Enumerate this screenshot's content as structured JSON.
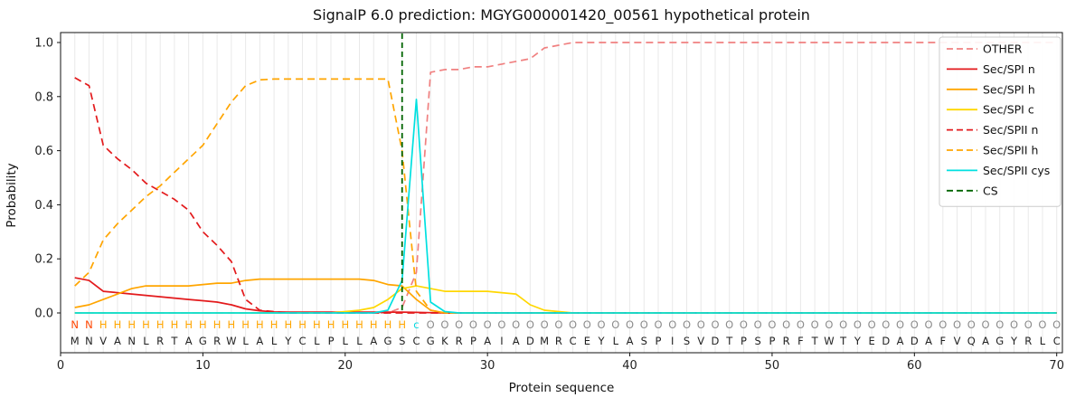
{
  "chart_data": {
    "type": "line",
    "title": "SignalP 6.0 prediction: MGYG000001420_00561 hypothetical protein",
    "xlabel": "Protein sequence",
    "ylabel": "Probability",
    "xlim": [
      0,
      70.4
    ],
    "ylim": [
      0.0,
      1.05
    ],
    "xticks": [
      0,
      10,
      20,
      30,
      40,
      50,
      60,
      70
    ],
    "yticks": [
      0.0,
      0.2,
      0.4,
      0.6,
      0.8,
      1.0
    ],
    "grid": "vertical-per-residue",
    "legend_position": "upper right",
    "colors": {
      "grid": "#e9e9e9",
      "frame": "#111111",
      "sequence_text": "#222222"
    },
    "sequence": "MNVANLRTAGRWLALYCLPLLAGSCGKRPAIADMRCEYLASPISVDTPSPRFTWTYEDADAFVQAGYRLC",
    "annotation": "NNHHHHHHHHHHHHHHHHHHHHHHcOOOOOOOOOOOOOOOOOOOOOOOOOOOOOOOOOOOOOOOOOOOOO",
    "annotation_colors": {
      "N": "#ff4500",
      "H": "#ffa500",
      "c": "#00d8e0",
      "O": "#8c8c8c"
    },
    "cs": {
      "label": "CS",
      "position": 24,
      "color": "#006400"
    },
    "series": [
      {
        "name": "OTHER",
        "color": "#f08080",
        "dash": true,
        "values": [
          0,
          0,
          0,
          0,
          0,
          0,
          0,
          0,
          0,
          0,
          0,
          0,
          0,
          0,
          0,
          0,
          0,
          0,
          0,
          0,
          0,
          0,
          0,
          0.02,
          0.15,
          0.89,
          0.9,
          0.9,
          0.91,
          0.91,
          0.92,
          0.93,
          0.94,
          0.98,
          0.99,
          1,
          1,
          1,
          1,
          1,
          1,
          1,
          1,
          1,
          1,
          1,
          1,
          1,
          1,
          1,
          1,
          1,
          1,
          1,
          1,
          1,
          1,
          1,
          1,
          1,
          1,
          1,
          1,
          1,
          1,
          1,
          1,
          1,
          1,
          1
        ]
      },
      {
        "name": "Sec/SPI n",
        "color": "#e31a1c",
        "dash": false,
        "values": [
          0.13,
          0.12,
          0.08,
          0.075,
          0.07,
          0.065,
          0.06,
          0.055,
          0.05,
          0.045,
          0.04,
          0.03,
          0.015,
          0.008,
          0.004,
          0.003,
          0.003,
          0.003,
          0.003,
          0.003,
          0.003,
          0.003,
          0.003,
          0.003,
          0.002,
          0.001,
          0,
          0,
          0,
          0,
          0,
          0,
          0,
          0,
          0,
          0,
          0,
          0,
          0,
          0,
          0,
          0,
          0,
          0,
          0,
          0,
          0,
          0,
          0,
          0,
          0,
          0,
          0,
          0,
          0,
          0,
          0,
          0,
          0,
          0,
          0,
          0,
          0,
          0,
          0,
          0,
          0,
          0,
          0,
          0
        ]
      },
      {
        "name": "Sec/SPI h",
        "color": "#ffa500",
        "dash": false,
        "values": [
          0.02,
          0.03,
          0.05,
          0.07,
          0.09,
          0.1,
          0.1,
          0.1,
          0.1,
          0.105,
          0.11,
          0.11,
          0.12,
          0.125,
          0.125,
          0.125,
          0.125,
          0.125,
          0.125,
          0.125,
          0.125,
          0.12,
          0.105,
          0.1,
          0.05,
          0.01,
          0,
          0,
          0,
          0,
          0,
          0,
          0,
          0,
          0,
          0,
          0,
          0,
          0,
          0,
          0,
          0,
          0,
          0,
          0,
          0,
          0,
          0,
          0,
          0,
          0,
          0,
          0,
          0,
          0,
          0,
          0,
          0,
          0,
          0,
          0,
          0,
          0,
          0,
          0,
          0,
          0,
          0,
          0,
          0
        ]
      },
      {
        "name": "Sec/SPI c",
        "color": "#ffd700",
        "dash": false,
        "values": [
          0,
          0,
          0,
          0,
          0,
          0,
          0,
          0,
          0,
          0,
          0,
          0,
          0,
          0,
          0,
          0,
          0,
          0,
          0,
          0.005,
          0.01,
          0.02,
          0.05,
          0.09,
          0.1,
          0.09,
          0.08,
          0.08,
          0.08,
          0.08,
          0.075,
          0.07,
          0.03,
          0.01,
          0.005,
          0,
          0,
          0,
          0,
          0,
          0,
          0,
          0,
          0,
          0,
          0,
          0,
          0,
          0,
          0,
          0,
          0,
          0,
          0,
          0,
          0,
          0,
          0,
          0,
          0,
          0,
          0,
          0,
          0,
          0,
          0,
          0,
          0,
          0,
          0
        ]
      },
      {
        "name": "Sec/SPII n",
        "color": "#e31a1c",
        "dash": true,
        "values": [
          0.87,
          0.84,
          0.62,
          0.57,
          0.53,
          0.48,
          0.45,
          0.42,
          0.38,
          0.3,
          0.25,
          0.19,
          0.05,
          0.01,
          0.005,
          0,
          0,
          0,
          0,
          0,
          0,
          0,
          0,
          0,
          0,
          0,
          0,
          0,
          0,
          0,
          0,
          0,
          0,
          0,
          0,
          0,
          0,
          0,
          0,
          0,
          0,
          0,
          0,
          0,
          0,
          0,
          0,
          0,
          0,
          0,
          0,
          0,
          0,
          0,
          0,
          0,
          0,
          0,
          0,
          0,
          0,
          0,
          0,
          0,
          0,
          0,
          0,
          0,
          0,
          0
        ]
      },
      {
        "name": "Sec/SPII h",
        "color": "#ffa500",
        "dash": true,
        "values": [
          0.1,
          0.15,
          0.27,
          0.33,
          0.38,
          0.43,
          0.47,
          0.52,
          0.57,
          0.62,
          0.7,
          0.78,
          0.84,
          0.862,
          0.865,
          0.865,
          0.865,
          0.865,
          0.865,
          0.865,
          0.865,
          0.865,
          0.865,
          0.6,
          0.08,
          0.01,
          0,
          0,
          0,
          0,
          0,
          0,
          0,
          0,
          0,
          0,
          0,
          0,
          0,
          0,
          0,
          0,
          0,
          0,
          0,
          0,
          0,
          0,
          0,
          0,
          0,
          0,
          0,
          0,
          0,
          0,
          0,
          0,
          0,
          0,
          0,
          0,
          0,
          0,
          0,
          0,
          0,
          0,
          0,
          0
        ]
      },
      {
        "name": "Sec/SPII cys",
        "color": "#00e0e0",
        "dash": false,
        "values": [
          0,
          0,
          0,
          0,
          0,
          0,
          0,
          0,
          0,
          0,
          0,
          0,
          0,
          0,
          0,
          0,
          0,
          0,
          0,
          0,
          0,
          0,
          0.01,
          0.12,
          0.79,
          0.04,
          0.005,
          0,
          0,
          0,
          0,
          0,
          0,
          0,
          0,
          0,
          0,
          0,
          0,
          0,
          0,
          0,
          0,
          0,
          0,
          0,
          0,
          0,
          0,
          0,
          0,
          0,
          0,
          0,
          0,
          0,
          0,
          0,
          0,
          0,
          0,
          0,
          0,
          0,
          0,
          0,
          0,
          0,
          0,
          0
        ]
      }
    ]
  }
}
